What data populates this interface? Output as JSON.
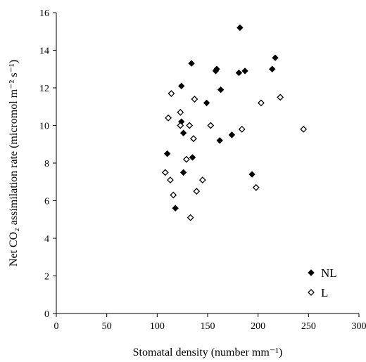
{
  "chart_data": {
    "type": "scatter",
    "xlabel": "Stomatal density (number mm⁻¹)",
    "ylabel": "Net CO₂ assimilation rate (micromol m⁻² s⁻¹)",
    "xlim": [
      0,
      300
    ],
    "ylim": [
      0,
      16
    ],
    "x_ticks": [
      0,
      50,
      100,
      150,
      200,
      250,
      300
    ],
    "y_ticks": [
      0,
      2,
      4,
      6,
      8,
      10,
      12,
      14,
      16
    ],
    "grid": false,
    "legend_position": "bottom-right",
    "series": [
      {
        "name": "NL",
        "marker": "filled-diamond",
        "color": "#000000",
        "points": [
          [
            110,
            8.5
          ],
          [
            118,
            5.6
          ],
          [
            124,
            12.1
          ],
          [
            124,
            10.2
          ],
          [
            126,
            9.6
          ],
          [
            126,
            7.5
          ],
          [
            134,
            13.3
          ],
          [
            135,
            8.3
          ],
          [
            149,
            11.2
          ],
          [
            158,
            12.9
          ],
          [
            159,
            13.0
          ],
          [
            162,
            9.2
          ],
          [
            163,
            11.9
          ],
          [
            174,
            9.5
          ],
          [
            181,
            12.8
          ],
          [
            182,
            15.2
          ],
          [
            187,
            12.9
          ],
          [
            194,
            7.4
          ],
          [
            214,
            13.0
          ],
          [
            217,
            13.6
          ]
        ]
      },
      {
        "name": "L",
        "marker": "open-diamond",
        "color": "#000000",
        "points": [
          [
            108,
            7.5
          ],
          [
            111,
            10.4
          ],
          [
            113,
            7.1
          ],
          [
            114,
            11.7
          ],
          [
            116,
            6.3
          ],
          [
            123,
            10.7
          ],
          [
            123,
            10.0
          ],
          [
            129,
            8.2
          ],
          [
            132,
            10.0
          ],
          [
            133,
            5.1
          ],
          [
            136,
            9.3
          ],
          [
            137,
            11.4
          ],
          [
            139,
            6.5
          ],
          [
            145,
            7.1
          ],
          [
            153,
            10.0
          ],
          [
            184,
            9.8
          ],
          [
            198,
            6.7
          ],
          [
            203,
            11.2
          ],
          [
            222,
            11.5
          ],
          [
            245,
            9.8
          ]
        ]
      }
    ]
  }
}
